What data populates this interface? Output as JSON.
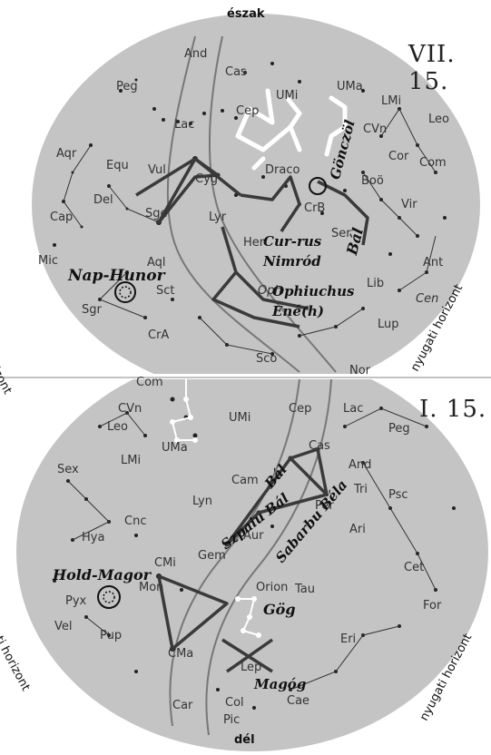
{
  "north_label": "észak",
  "south_label": "dél",
  "summer_map": {
    "date": "VII. 15.",
    "left_horizon": "keleti horizont",
    "right_horizon": "nyugati horizont",
    "constellations": [
      "And",
      "Cas",
      "Peg",
      "UMi",
      "UMa",
      "LMi",
      "Lac",
      "Cep",
      "CVn",
      "Leo",
      "Aqr",
      "Equ",
      "Vul",
      "Cyg",
      "Draco",
      "Com",
      "Cor",
      "Del",
      "Sge",
      "Lyr",
      "CrB",
      "Boö",
      "Vir",
      "Cap",
      "Her",
      "Ser",
      "Ant",
      "Mic",
      "Aql",
      "Lib",
      "Sct",
      "Oph",
      "Cen",
      "Sgr",
      "Lup",
      "CrA",
      "Sco",
      "Nor"
    ],
    "annotations": [
      "Gönczöl",
      "Bál",
      "Nap-Hunor",
      "Cur-rus Nimród",
      "Ophiuchus Ené(h)"
    ]
  },
  "winter_map": {
    "date": "I. 15.",
    "left_horizon": "keleti horizont",
    "right_horizon": "nyugati horizont",
    "constellations": [
      "Com",
      "CVn",
      "UMi",
      "Cep",
      "Lac",
      "Peg",
      "Leo",
      "UMa",
      "Cas",
      "And",
      "Sex",
      "LMi",
      "Cam",
      "Tri",
      "Psc",
      "Lyn",
      "Per",
      "Cnc",
      "Aur",
      "Ari",
      "Hya",
      "Gem",
      "CMi",
      "Cet",
      "Mon",
      "Tau",
      "Pyx",
      "Orion",
      "For",
      "Vel",
      "Pup",
      "Eri",
      "CMa",
      "Lep",
      "Car",
      "Col",
      "Cae",
      "Pic"
    ],
    "annotations": [
      "Bál",
      "Szpaiu Bál",
      "Sabarbu Béla",
      "Hold-Magor",
      "Gög",
      "Magóg"
    ]
  }
}
